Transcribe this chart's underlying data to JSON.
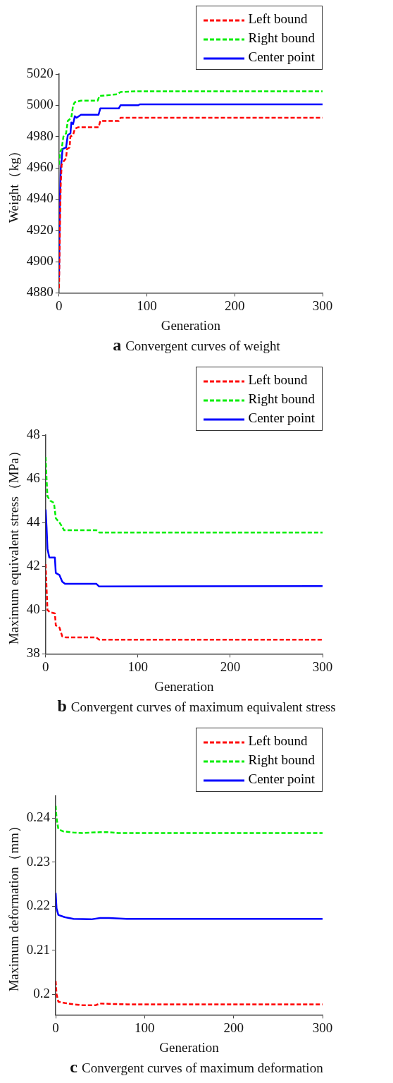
{
  "chart_data": [
    {
      "type": "line",
      "title": "a Convergent curves of weight",
      "xlabel": "Generation",
      "ylabel": "Weight（kg）",
      "xlim": [
        0,
        300
      ],
      "xticks": [
        0,
        100,
        200,
        300
      ],
      "ylim": [
        4880,
        5020
      ],
      "yticks": [
        4880,
        4900,
        4920,
        4940,
        4960,
        4980,
        5000,
        5020
      ],
      "grid": false,
      "legend": "top right",
      "series": [
        {
          "name": "Left bound",
          "color": "#ff0000",
          "line_style": "dashed",
          "x": [
            0,
            1,
            2,
            3,
            5,
            8,
            9,
            12,
            13,
            16,
            18,
            22,
            45,
            47,
            68,
            70,
            90,
            300
          ],
          "values": [
            4883,
            4920,
            4950,
            4962,
            4964,
            4966,
            4972,
            4973,
            4980,
            4981,
            4985,
            4986,
            4986,
            4990,
            4990,
            4992,
            4992,
            4992
          ]
        },
        {
          "name": "Right bound",
          "color": "#00ee00",
          "line_style": "dashed",
          "x": [
            0,
            1,
            3,
            5,
            8,
            10,
            14,
            16,
            18,
            25,
            44,
            46,
            66,
            70,
            90,
            300
          ],
          "values": [
            4962,
            4970,
            4972,
            4980,
            4982,
            4990,
            4992,
            5000,
            5002,
            5003,
            5003,
            5006,
            5007,
            5008.5,
            5009,
            5009
          ]
        },
        {
          "name": "Center point",
          "color": "#0000ff",
          "line_style": "solid",
          "x": [
            0,
            1,
            2,
            3,
            4,
            8,
            10,
            13,
            14,
            16,
            18,
            20,
            25,
            45,
            47,
            68,
            70,
            90,
            92,
            300
          ],
          "values": [
            4890,
            4940,
            4960,
            4965,
            4972,
            4973,
            4981,
            4982,
            4989,
            4988,
            4993,
            4992,
            4994,
            4994,
            4998,
            4998,
            5000,
            5000,
            5000.6,
            5000.6
          ]
        }
      ]
    },
    {
      "type": "line",
      "title": "b Convergent curves of maximum equivalent stress",
      "xlabel": "Generation",
      "ylabel": "Maximum equivalent stress（MPa）",
      "xlim": [
        0,
        300
      ],
      "xticks": [
        0,
        100,
        200,
        300
      ],
      "ylim": [
        38,
        48
      ],
      "yticks": [
        38,
        40,
        42,
        44,
        46,
        48
      ],
      "grid": false,
      "legend": "top right",
      "series": [
        {
          "name": "Left bound",
          "color": "#ff0000",
          "line_style": "dashed",
          "x": [
            0,
            1,
            2,
            5,
            10,
            11,
            15,
            18,
            22,
            55,
            58,
            300
          ],
          "values": [
            42.1,
            41.0,
            40.0,
            39.9,
            39.85,
            39.3,
            39.2,
            38.8,
            38.75,
            38.75,
            38.65,
            38.65
          ]
        },
        {
          "name": "Right bound",
          "color": "#00ee00",
          "line_style": "dashed",
          "x": [
            0,
            1,
            2,
            5,
            9,
            11,
            15,
            18,
            20,
            55,
            58,
            80,
            300
          ],
          "values": [
            47,
            46,
            45.2,
            45,
            44.9,
            44.2,
            44.0,
            43.8,
            43.65,
            43.65,
            43.55,
            43.55,
            43.55
          ]
        },
        {
          "name": "Center point",
          "color": "#0000ff",
          "line_style": "solid",
          "x": [
            0,
            1,
            2,
            4,
            10,
            11,
            15,
            18,
            21,
            55,
            58,
            300
          ],
          "values": [
            44.6,
            43.8,
            42.8,
            42.4,
            42.4,
            41.7,
            41.6,
            41.3,
            41.2,
            41.2,
            41.08,
            41.1
          ]
        }
      ]
    },
    {
      "type": "line",
      "title": "c Convergent curves of maximum deformation",
      "xlabel": "Generation",
      "ylabel": "Maximum deformation（mm）",
      "xlim": [
        0,
        300
      ],
      "xticks": [
        0,
        100,
        200,
        300
      ],
      "ylim": [
        0.1953,
        0.245
      ],
      "yticks": [
        0.2,
        0.21,
        0.22,
        0.23,
        0.24
      ],
      "grid": false,
      "legend": "top right",
      "series": [
        {
          "name": "Left bound",
          "color": "#ff0000",
          "line_style": "dashed",
          "x": [
            0,
            1,
            3,
            10,
            20,
            30,
            45,
            50,
            60,
            80,
            300
          ],
          "values": [
            0.203,
            0.2,
            0.1983,
            0.198,
            0.1977,
            0.1975,
            0.1975,
            0.1979,
            0.1978,
            0.1977,
            0.1977
          ]
        },
        {
          "name": "Right bound",
          "color": "#00ee00",
          "line_style": "dashed",
          "x": [
            0,
            1,
            3,
            8,
            20,
            30,
            50,
            60,
            70,
            300
          ],
          "values": [
            0.2428,
            0.24,
            0.2375,
            0.237,
            0.2367,
            0.2366,
            0.2368,
            0.2368,
            0.2366,
            0.2366
          ]
        },
        {
          "name": "Center point",
          "color": "#0000ff",
          "line_style": "solid",
          "x": [
            0,
            1,
            3,
            10,
            20,
            40,
            50,
            60,
            80,
            300
          ],
          "values": [
            0.223,
            0.2195,
            0.218,
            0.2175,
            0.2171,
            0.217,
            0.2173,
            0.2173,
            0.2171,
            0.2171
          ]
        }
      ]
    }
  ]
}
